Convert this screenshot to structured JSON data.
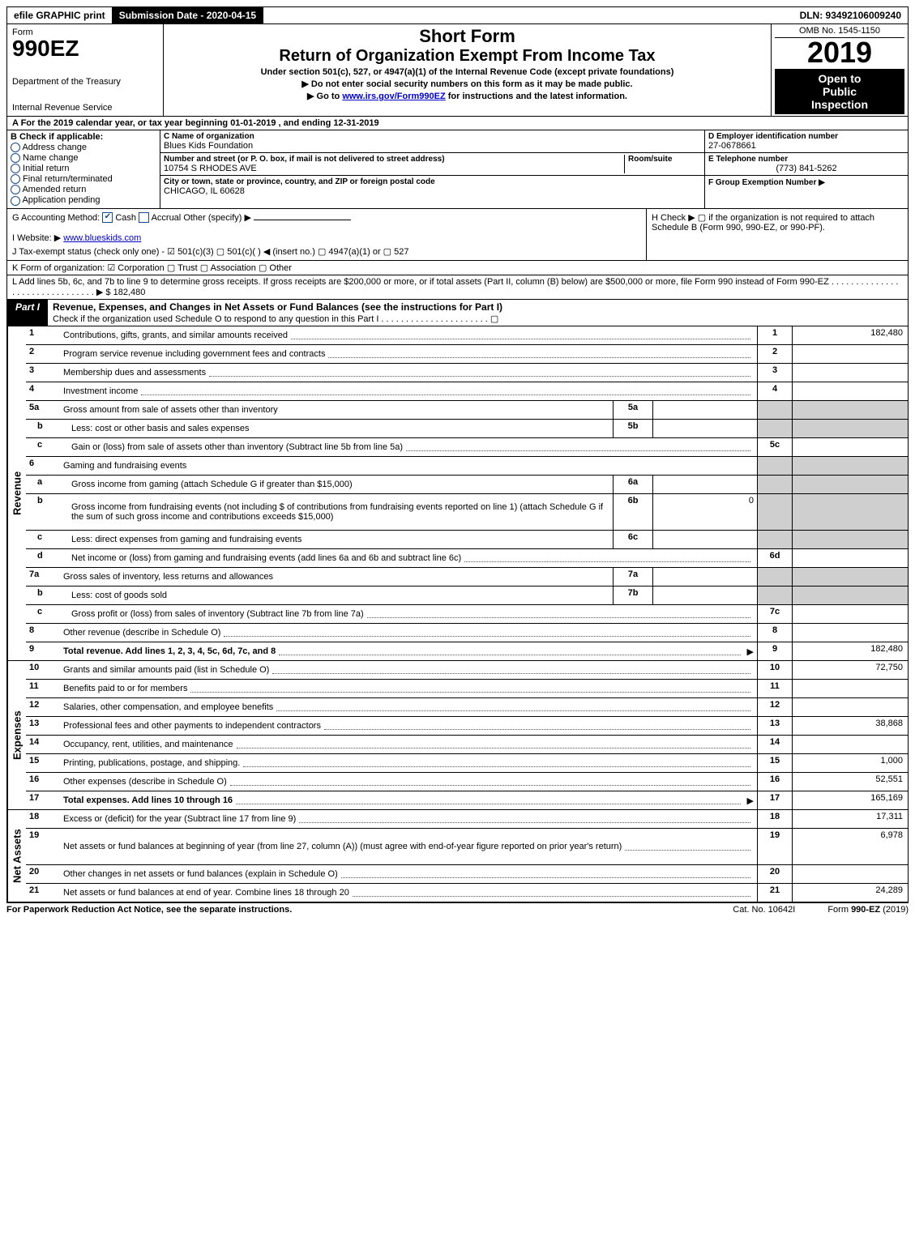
{
  "colors": {
    "black": "#000000",
    "white": "#ffffff",
    "shade": "#cfcfcf",
    "blue_check": "#174a8b",
    "link": "#0000cc"
  },
  "top_bar": {
    "efile": "efile GRAPHIC print",
    "submission": "Submission Date - 2020-04-15",
    "dln": "DLN: 93492106009240"
  },
  "header": {
    "form_word": "Form",
    "form_number": "990EZ",
    "dept1": "Department of the Treasury",
    "dept2": "Internal Revenue Service",
    "short_form": "Short Form",
    "title": "Return of Organization Exempt From Income Tax",
    "under": "Under section 501(c), 527, or 4947(a)(1) of the Internal Revenue Code (except private foundations)",
    "no_ssn": "▶ Do not enter social security numbers on this form as it may be made public.",
    "go_to_prefix": "▶ Go to ",
    "go_to_link": "www.irs.gov/Form990EZ",
    "go_to_suffix": " for instructions and the latest information.",
    "omb": "OMB No. 1545-1150",
    "year": "2019",
    "open": "Open to",
    "public": "Public",
    "inspection": "Inspection"
  },
  "row_a": "A  For the 2019 calendar year, or tax year beginning 01-01-2019 , and ending 12-31-2019",
  "col_b": {
    "title": "B  Check if applicable:",
    "items": [
      "Address change",
      "Name change",
      "Initial return",
      "Final return/terminated",
      "Amended return",
      "Application pending"
    ]
  },
  "col_c": {
    "c_label": "C Name of organization",
    "c_value": "Blues Kids Foundation",
    "addr_label": "Number and street (or P. O. box, if mail is not delivered to street address)",
    "addr_value": "10754 S RHODES AVE",
    "room_label": "Room/suite",
    "city_label": "City or town, state or province, country, and ZIP or foreign postal code",
    "city_value": "CHICAGO, IL  60628"
  },
  "col_de": {
    "d_label": "D Employer identification number",
    "d_value": "27-0678661",
    "e_label": "E Telephone number",
    "e_value": "(773) 841-5262",
    "f_label": "F Group Exemption Number ▶",
    "f_value": ""
  },
  "row_g": {
    "label": "G Accounting Method:",
    "cash": "Cash",
    "accrual": "Accrual",
    "other": "Other (specify) ▶",
    "cash_checked": true
  },
  "row_h": {
    "text": "H  Check ▶ ▢ if the organization is not required to attach Schedule B (Form 990, 990-EZ, or 990-PF)."
  },
  "row_i": {
    "label": "I Website: ▶",
    "value": "www.blueskids.com"
  },
  "row_j": "J Tax-exempt status (check only one) - ☑ 501(c)(3)  ▢ 501(c)(  ) ◀ (insert no.)  ▢ 4947(a)(1) or  ▢ 527",
  "row_k": "K Form of organization:  ☑ Corporation  ▢ Trust  ▢ Association  ▢ Other",
  "row_l": {
    "text": "L Add lines 5b, 6c, and 7b to line 9 to determine gross receipts. If gross receipts are $200,000 or more, or if total assets (Part II, column (B) below) are $500,000 or more, file Form 990 instead of Form 990-EZ . . . . . . . . . . . . . . . . . . . . . . . . . . . . . . . ▶ $",
    "amount": "182,480"
  },
  "part1": {
    "tab": "Part I",
    "title": "Revenue, Expenses, and Changes in Net Assets or Fund Balances (see the instructions for Part I)",
    "check_line": "Check if the organization used Schedule O to respond to any question in this Part I . . . . . . . . . . . . . . . . . . . . . . ▢"
  },
  "sections": [
    {
      "side": "Revenue",
      "rows": [
        {
          "n": "1",
          "desc": "Contributions, gifts, grants, and similar amounts received",
          "rn": "1",
          "val": "182,480"
        },
        {
          "n": "2",
          "desc": "Program service revenue including government fees and contracts",
          "rn": "2",
          "val": ""
        },
        {
          "n": "3",
          "desc": "Membership dues and assessments",
          "rn": "3",
          "val": ""
        },
        {
          "n": "4",
          "desc": "Investment income",
          "rn": "4",
          "val": ""
        },
        {
          "n": "5a",
          "desc": "Gross amount from sale of assets other than inventory",
          "mini_n": "5a",
          "mini_v": "",
          "rn": "",
          "val": "",
          "shade": true
        },
        {
          "n": "b",
          "sub": true,
          "desc": "Less: cost or other basis and sales expenses",
          "mini_n": "5b",
          "mini_v": "",
          "rn": "",
          "val": "",
          "shade": true
        },
        {
          "n": "c",
          "sub": true,
          "desc": "Gain or (loss) from sale of assets other than inventory (Subtract line 5b from line 5a)",
          "rn": "5c",
          "val": ""
        },
        {
          "n": "6",
          "desc": "Gaming and fundraising events",
          "rn": "",
          "val": "",
          "shade": true,
          "no_dots": true
        },
        {
          "n": "a",
          "sub": true,
          "desc": "Gross income from gaming (attach Schedule G if greater than $15,000)",
          "mini_n": "6a",
          "mini_v": "",
          "rn": "",
          "val": "",
          "shade": true
        },
        {
          "n": "b",
          "sub": true,
          "desc": "Gross income from fundraising events (not including $            of contributions from fundraising events reported on line 1) (attach Schedule G if the sum of such gross income and contributions exceeds $15,000)",
          "mini_n": "6b",
          "mini_v": "0",
          "rn": "",
          "val": "",
          "shade": true,
          "tall": true
        },
        {
          "n": "c",
          "sub": true,
          "desc": "Less: direct expenses from gaming and fundraising events",
          "mini_n": "6c",
          "mini_v": "",
          "rn": "",
          "val": "",
          "shade": true
        },
        {
          "n": "d",
          "sub": true,
          "desc": "Net income or (loss) from gaming and fundraising events (add lines 6a and 6b and subtract line 6c)",
          "rn": "6d",
          "val": ""
        },
        {
          "n": "7a",
          "desc": "Gross sales of inventory, less returns and allowances",
          "mini_n": "7a",
          "mini_v": "",
          "rn": "",
          "val": "",
          "shade": true
        },
        {
          "n": "b",
          "sub": true,
          "desc": "Less: cost of goods sold",
          "mini_n": "7b",
          "mini_v": "",
          "rn": "",
          "val": "",
          "shade": true
        },
        {
          "n": "c",
          "sub": true,
          "desc": "Gross profit or (loss) from sales of inventory (Subtract line 7b from line 7a)",
          "rn": "7c",
          "val": ""
        },
        {
          "n": "8",
          "desc": "Other revenue (describe in Schedule O)",
          "rn": "8",
          "val": ""
        },
        {
          "n": "9",
          "desc": "Total revenue. Add lines 1, 2, 3, 4, 5c, 6d, 7c, and 8",
          "arrow": true,
          "rn": "9",
          "val": "182,480",
          "bold": true
        }
      ]
    },
    {
      "side": "Expenses",
      "rows": [
        {
          "n": "10",
          "desc": "Grants and similar amounts paid (list in Schedule O)",
          "rn": "10",
          "val": "72,750"
        },
        {
          "n": "11",
          "desc": "Benefits paid to or for members",
          "rn": "11",
          "val": ""
        },
        {
          "n": "12",
          "desc": "Salaries, other compensation, and employee benefits",
          "rn": "12",
          "val": ""
        },
        {
          "n": "13",
          "desc": "Professional fees and other payments to independent contractors",
          "rn": "13",
          "val": "38,868"
        },
        {
          "n": "14",
          "desc": "Occupancy, rent, utilities, and maintenance",
          "rn": "14",
          "val": ""
        },
        {
          "n": "15",
          "desc": "Printing, publications, postage, and shipping.",
          "rn": "15",
          "val": "1,000"
        },
        {
          "n": "16",
          "desc": "Other expenses (describe in Schedule O)",
          "rn": "16",
          "val": "52,551"
        },
        {
          "n": "17",
          "desc": "Total expenses. Add lines 10 through 16",
          "arrow": true,
          "rn": "17",
          "val": "165,169",
          "bold": true
        }
      ]
    },
    {
      "side": "Net Assets",
      "rows": [
        {
          "n": "18",
          "desc": "Excess or (deficit) for the year (Subtract line 17 from line 9)",
          "rn": "18",
          "val": "17,311"
        },
        {
          "n": "19",
          "desc": "Net assets or fund balances at beginning of year (from line 27, column (A)) (must agree with end-of-year figure reported on prior year's return)",
          "rn": "19",
          "val": "6,978",
          "tall": true
        },
        {
          "n": "20",
          "desc": "Other changes in net assets or fund balances (explain in Schedule O)",
          "rn": "20",
          "val": ""
        },
        {
          "n": "21",
          "desc": "Net assets or fund balances at end of year. Combine lines 18 through 20",
          "rn": "21",
          "val": "24,289"
        }
      ]
    }
  ],
  "footer": {
    "left": "For Paperwork Reduction Act Notice, see the separate instructions.",
    "mid": "Cat. No. 10642I",
    "right_prefix": "Form ",
    "right_bold": "990-EZ",
    "right_suffix": " (2019)"
  }
}
